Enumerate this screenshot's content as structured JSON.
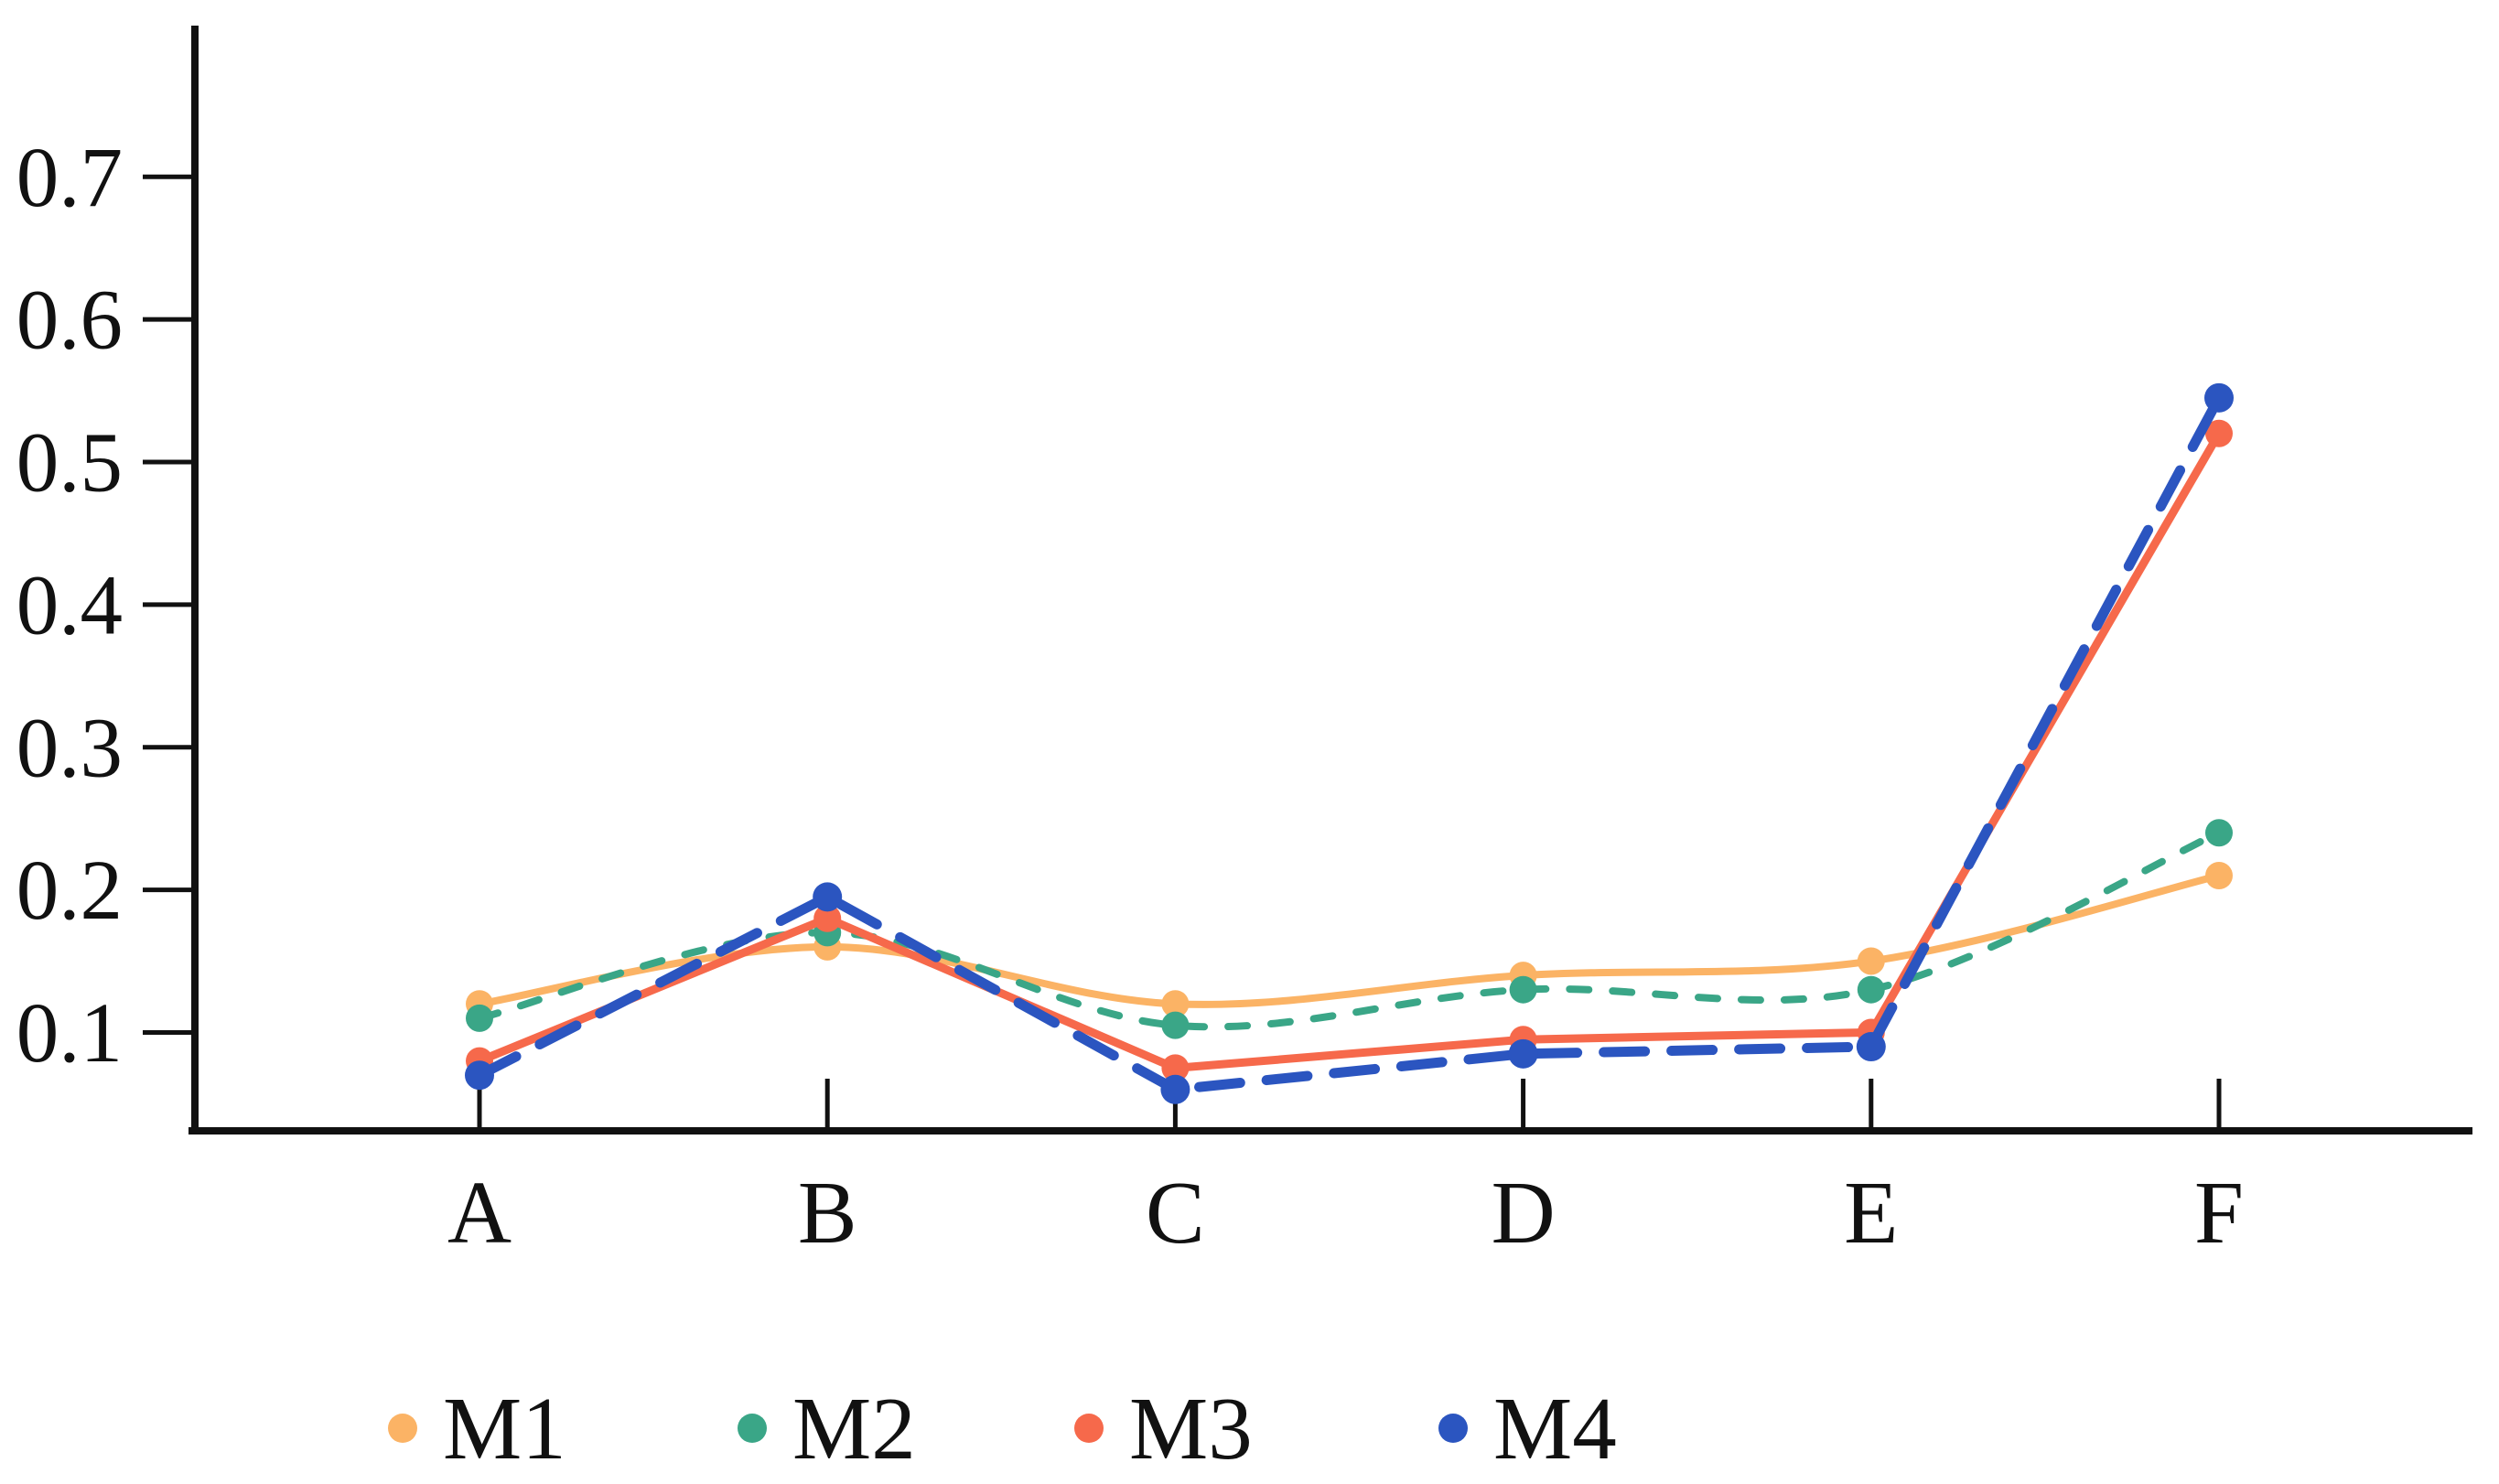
{
  "page": {
    "background_color": "#ffffff"
  },
  "chart_data": {
    "type": "line",
    "title": "",
    "xlabel": "",
    "ylabel": "",
    "categories": [
      "A",
      "B",
      "C",
      "D",
      "E",
      "F"
    ],
    "series": [
      {
        "name": "M1",
        "color": "#FBB365",
        "line_style": "solid",
        "curve": "smooth",
        "marker": "circle",
        "values": [
          0.12,
          0.16,
          0.12,
          0.14,
          0.15,
          0.21
        ]
      },
      {
        "name": "M2",
        "color": "#3AA687",
        "line_style": "dashed-short",
        "curve": "smooth",
        "marker": "circle",
        "values": [
          0.11,
          0.17,
          0.105,
          0.13,
          0.13,
          0.24
        ]
      },
      {
        "name": "M3",
        "color": "#F6694B",
        "line_style": "solid",
        "curve": "straight",
        "marker": "circle",
        "values": [
          0.08,
          0.18,
          0.075,
          0.095,
          0.1,
          0.52
        ]
      },
      {
        "name": "M4",
        "color": "#2B55C0",
        "line_style": "dashed-long",
        "curve": "straight",
        "marker": "circle",
        "values": [
          0.07,
          0.195,
          0.06,
          0.085,
          0.09,
          0.545
        ]
      }
    ],
    "y_ticks": [
      0.1,
      0.2,
      0.3,
      0.4,
      0.5,
      0.6,
      0.7
    ],
    "y_tick_labels": [
      "0.1",
      "0.2",
      "0.3",
      "0.4",
      "0.5",
      "0.6",
      "0.7"
    ],
    "ylim": [
      0.031,
      0.806
    ],
    "grid": false,
    "axis_color": "#111111",
    "legend_position": "bottom",
    "legend": [
      {
        "label": "M1",
        "color": "#FBB365"
      },
      {
        "label": "M2",
        "color": "#3AA687"
      },
      {
        "label": "M3",
        "color": "#F6694B"
      },
      {
        "label": "M4",
        "color": "#2B55C0"
      }
    ]
  }
}
